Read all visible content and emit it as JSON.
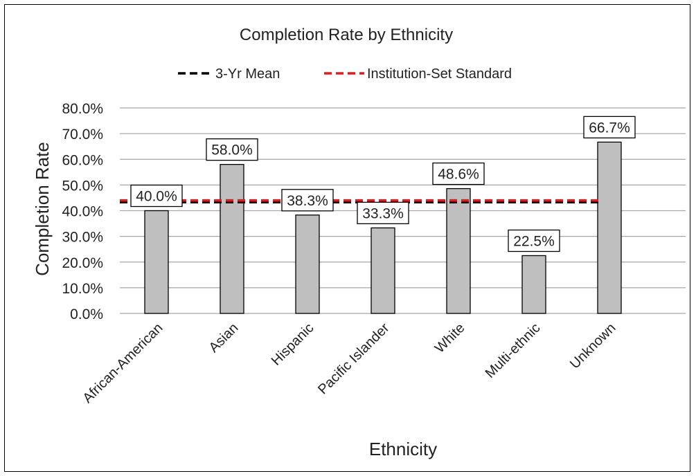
{
  "chart_data": {
    "type": "bar",
    "title": "Completion Rate by Ethnicity",
    "xlabel": "Ethnicity",
    "ylabel": "Completion Rate",
    "categories": [
      "African-American",
      "Asian",
      "Hispanic",
      "Pacific Islander",
      "White",
      "Multi-ethnic",
      "Unknown"
    ],
    "series": [
      {
        "values": [
          40.0,
          58.0,
          38.3,
          33.3,
          48.6,
          22.5,
          66.7
        ],
        "data_labels": [
          "40.0%",
          "58.0%",
          "38.3%",
          "33.3%",
          "48.6%",
          "22.5%",
          "66.7%"
        ],
        "color": "#bfbfbf",
        "border_color": "#000000"
      }
    ],
    "reference_lines": [
      {
        "name": "3-Yr Mean",
        "value": 43.3,
        "color": "#000000",
        "style": "dashed"
      },
      {
        "name": "Institution-Set Standard",
        "value": 44.0,
        "color": "#e8191a",
        "style": "dashed"
      }
    ],
    "ylim": [
      0,
      80
    ],
    "yticks": [
      0,
      10,
      20,
      30,
      40,
      50,
      60,
      70,
      80
    ],
    "ytick_labels": [
      "0.0%",
      "10.0%",
      "20.0%",
      "30.0%",
      "40.0%",
      "50.0%",
      "60.0%",
      "70.0%",
      "80.0%"
    ],
    "grid": true,
    "legend_position": "top-center",
    "gridline_color": "#a6a6a6"
  }
}
